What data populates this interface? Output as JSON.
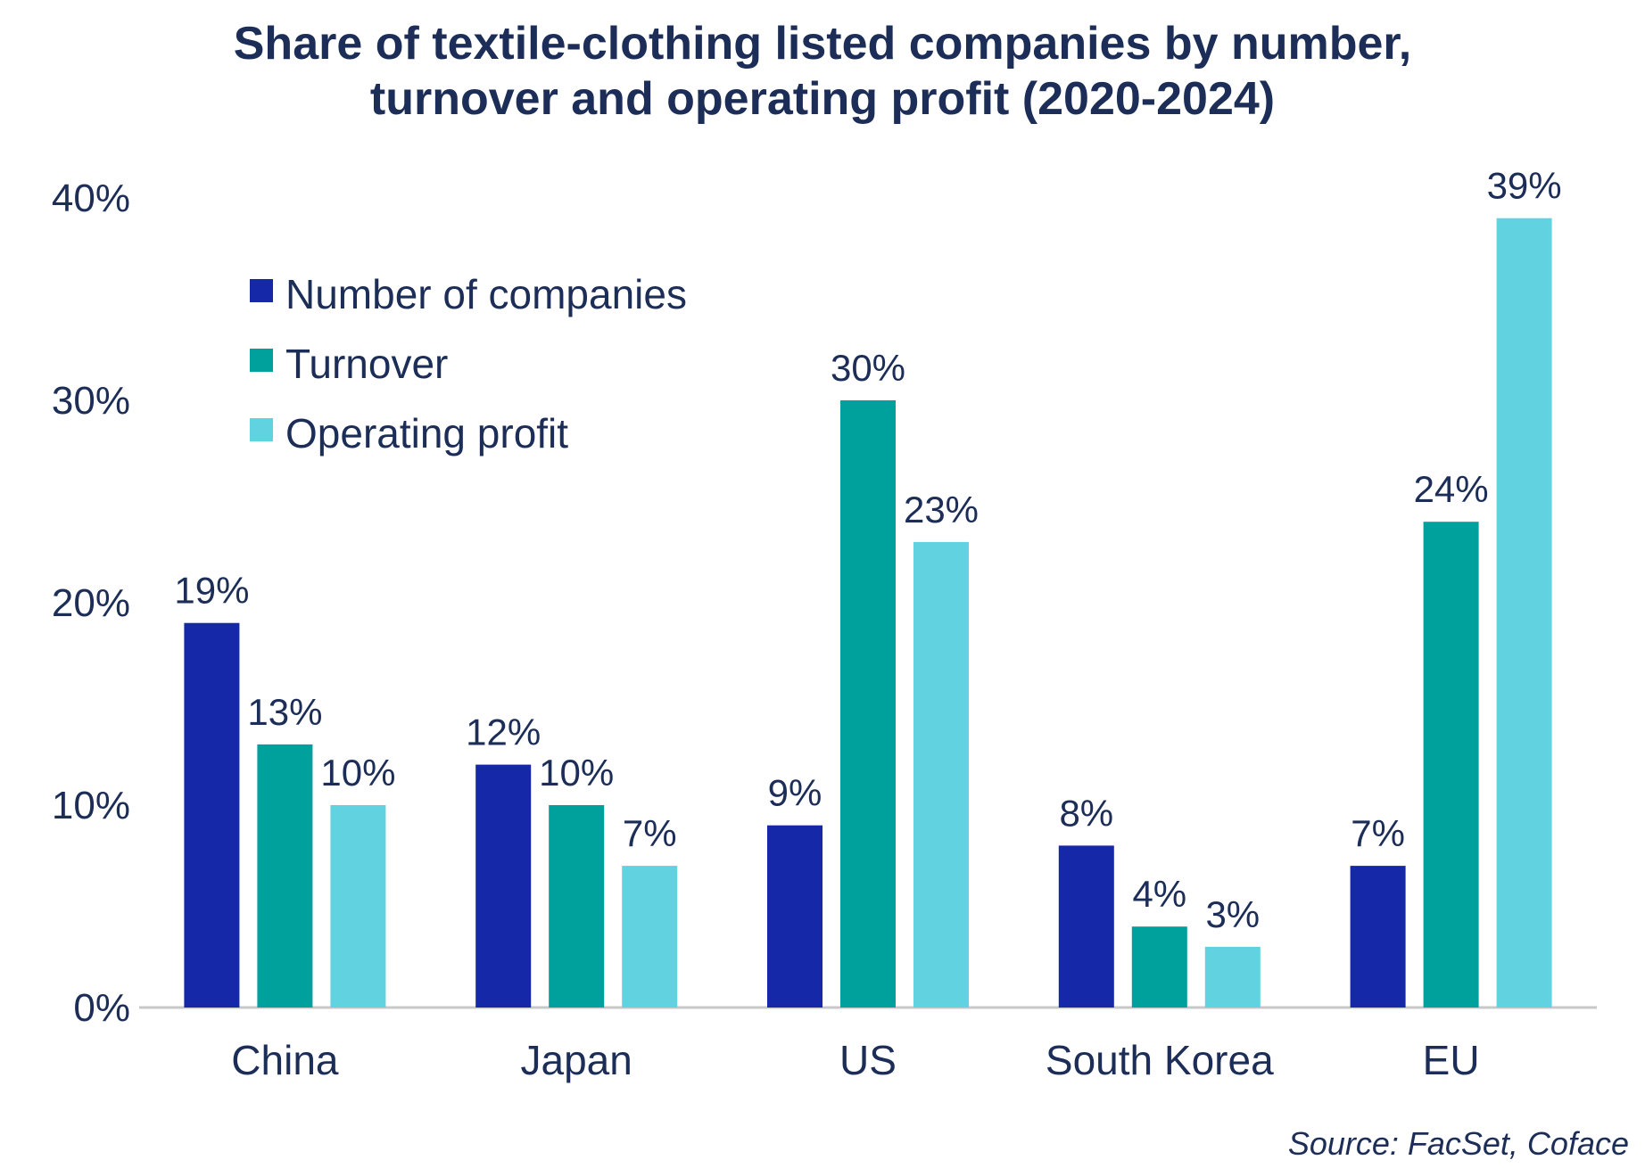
{
  "chart_data": {
    "type": "bar",
    "title": [
      "Share of textile-clothing listed companies by number,",
      "turnover and operating profit (2020-2024)"
    ],
    "categories": [
      "China",
      "Japan",
      "US",
      "South Korea",
      "EU"
    ],
    "series": [
      {
        "name": "Number of companies",
        "color": "#1428a8",
        "values": [
          19,
          12,
          9,
          8,
          7
        ],
        "labels": [
          "19%",
          "12%",
          "9%",
          "8%",
          "7%"
        ]
      },
      {
        "name": "Turnover",
        "color": "#00a19c",
        "values": [
          13,
          10,
          30,
          4,
          24
        ],
        "labels": [
          "13%",
          "10%",
          "30%",
          "4%",
          "24%"
        ]
      },
      {
        "name": "Operating profit",
        "color": "#61d2e0",
        "values": [
          10,
          7,
          23,
          3,
          39
        ],
        "labels": [
          "10%",
          "7%",
          "23%",
          "3%",
          "39%"
        ]
      }
    ],
    "ylim": [
      0,
      40
    ],
    "yticks": [
      "0%",
      "10%",
      "20%",
      "30%",
      "40%"
    ],
    "grid": false,
    "legend_position": "top-left",
    "xlabel": "",
    "ylabel": ""
  },
  "source": "Source: FacSet, Coface"
}
